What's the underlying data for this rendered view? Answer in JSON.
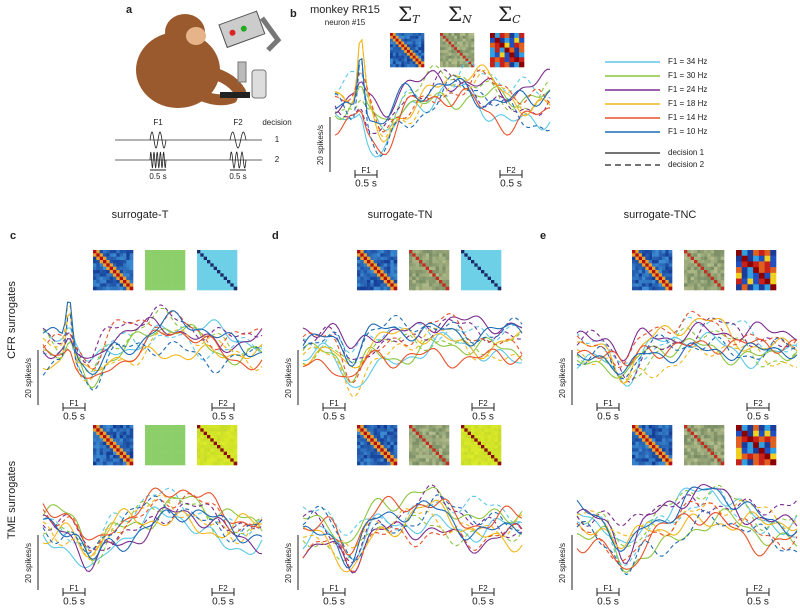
{
  "panel_a": {
    "label": "a",
    "stimuli": [
      "F1",
      "F2"
    ],
    "decision_header": "decision",
    "decisions": [
      "1",
      "2"
    ],
    "durations": [
      "0.5 s",
      "0.5 s"
    ]
  },
  "panel_b": {
    "label": "b",
    "title": "monkey RR15",
    "subtitle": "neuron #15",
    "matrices": [
      {
        "symbol": "Σ",
        "subscript": "T"
      },
      {
        "symbol": "Σ",
        "subscript": "N"
      },
      {
        "symbol": "Σ",
        "subscript": "C"
      }
    ]
  },
  "legend": {
    "frequencies": [
      {
        "label": "F1 = 34 Hz",
        "color": "#5bc8e8"
      },
      {
        "label": "F1 = 30 Hz",
        "color": "#8cc63f"
      },
      {
        "label": "F1 = 24 Hz",
        "color": "#7b2d8e"
      },
      {
        "label": "F1 = 18 Hz",
        "color": "#f2b71b"
      },
      {
        "label": "F1 = 14 Hz",
        "color": "#e8512a"
      },
      {
        "label": "F1 = 10 Hz",
        "color": "#1f6bb5"
      }
    ],
    "decisions": [
      {
        "label": "decision 1",
        "dash": "solid"
      },
      {
        "label": "decision 2",
        "dash": "dashed"
      }
    ]
  },
  "columns": [
    {
      "label": "c",
      "title": "surrogate-T"
    },
    {
      "label": "d",
      "title": "surrogate-TN"
    },
    {
      "label": "e",
      "title": "surrogate-TNC"
    }
  ],
  "rows": [
    "CFR surrogates",
    "TME surrogates"
  ],
  "plots": [
    {
      "y_scale": "20 spikes/s",
      "stim_1": "F1",
      "stim_2": "F2",
      "time_1": "0.5 s",
      "time_2": "0.5 s"
    },
    {
      "y_scale": "20 spikes/s",
      "stim_1": "F1",
      "stim_2": "F2",
      "time_1": "0.5 s",
      "time_2": "0.5 s"
    },
    {
      "y_scale": "20 spikes/s",
      "stim_1": "F1",
      "stim_2": "F2",
      "time_1": "0.5 s",
      "time_2": "0.5 s"
    },
    {
      "y_scale": "20 spikes/s",
      "stim_1": "F1",
      "stim_2": "F2",
      "time_1": "0.5 s",
      "time_2": "0.5 s"
    },
    {
      "y_scale": "20 spikes/s",
      "stim_1": "F1",
      "stim_2": "F2",
      "time_1": "0.5 s",
      "time_2": "0.5 s"
    },
    {
      "y_scale": "20 spikes/s",
      "stim_1": "F1",
      "stim_2": "F2",
      "time_1": "0.5 s",
      "time_2": "0.5 s"
    },
    {
      "y_scale": "20 spikes/s",
      "stim_1": "F1",
      "stim_2": "F2",
      "time_1": "0.5 s",
      "time_2": "0.5 s"
    }
  ]
}
